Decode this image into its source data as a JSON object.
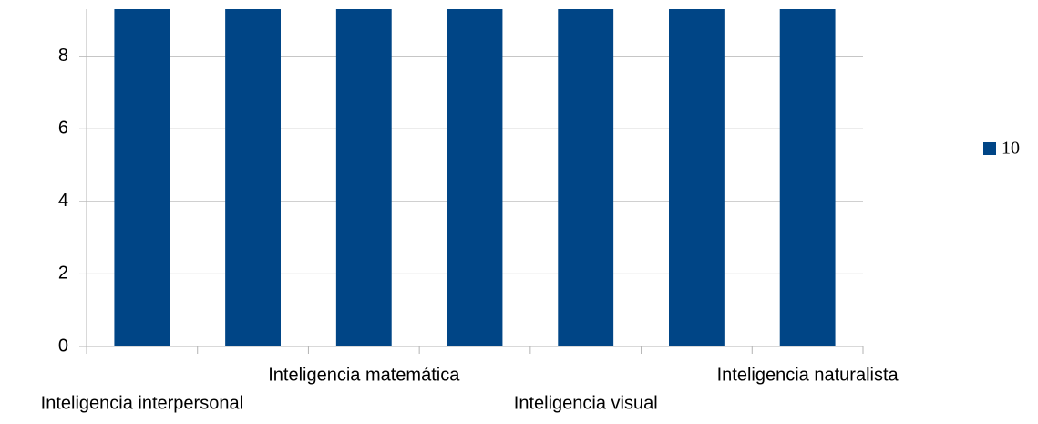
{
  "chart_data": {
    "type": "bar",
    "categories": [
      "Inteligencia interpersonal",
      null,
      "Inteligencia matemática",
      null,
      "Inteligencia visual",
      null,
      "Inteligencia naturalista"
    ],
    "series": [
      {
        "name": "10",
        "color": "#004586",
        "values": [
          10,
          10,
          10,
          10,
          10,
          10,
          10
        ]
      }
    ],
    "ylim": [
      0,
      9.3
    ],
    "yticks": [
      0,
      2,
      4,
      6,
      8
    ],
    "grid": true,
    "legend": "right"
  }
}
